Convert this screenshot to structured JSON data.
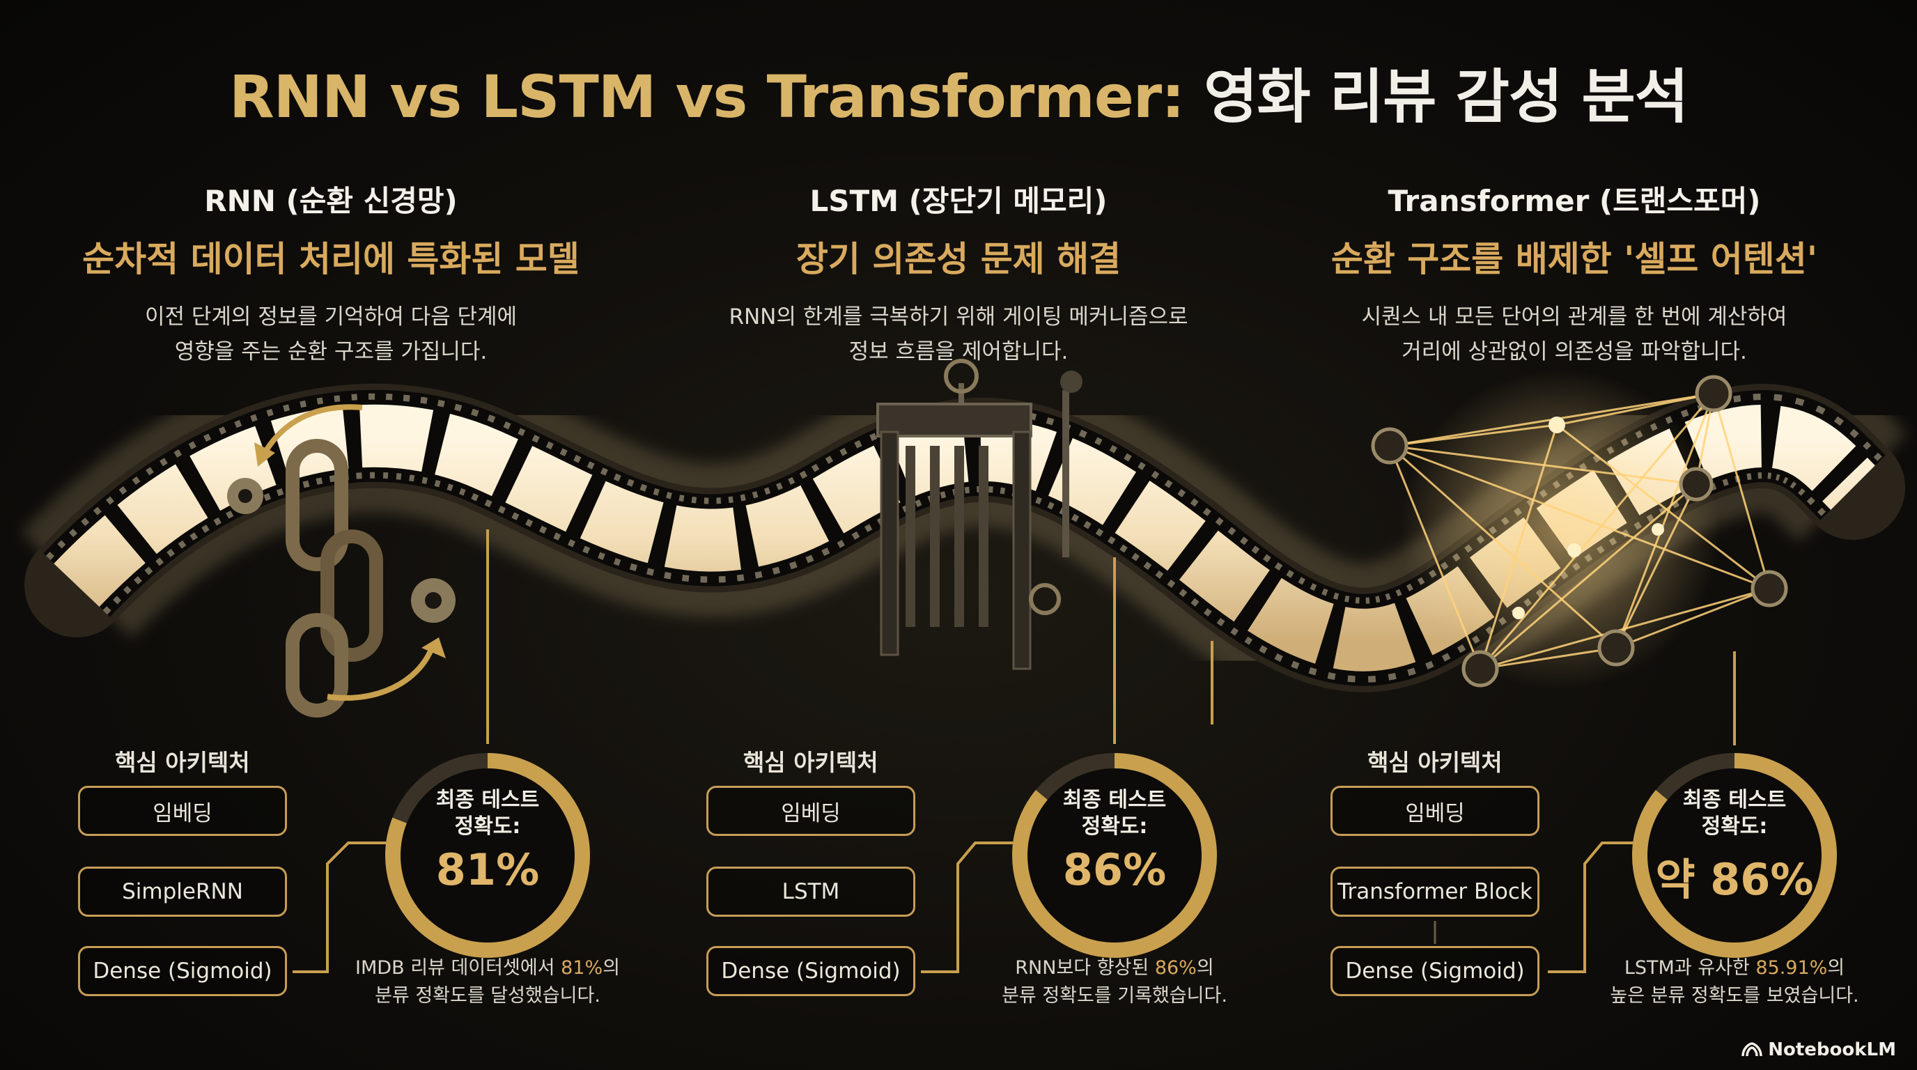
{
  "title": {
    "part1": "RNN vs LSTM vs Transformer:",
    "part2": "영화 리뷰 감성 분석"
  },
  "columns": [
    {
      "heading": "RNN (순환 신경망)",
      "subtitle": "순차적 데이터 처리에 특화된 모델",
      "desc_line1": "이전 단계의 정보를 기억하여 다음 단계에",
      "desc_line2": "영향을 주는 순환 구조를 가집니다.",
      "arch_title": "핵심 아키텍처",
      "layers": [
        "임베딩",
        "SimpleRNN",
        "Dense (Sigmoid)"
      ],
      "acc_label1": "최종 테스트",
      "acc_label2": "정확도:",
      "acc_value": "81%",
      "note_pre": "IMDB 리뷰 데이터셋에서 ",
      "note_hl": "81%",
      "note_post": "의",
      "note_line2": "분류 정확도를 달성했습니다."
    },
    {
      "heading": "LSTM (장단기 메모리)",
      "subtitle": "장기 의존성 문제 해결",
      "desc_line1": "RNN의 한계를 극복하기 위해 게이팅 메커니즘으로",
      "desc_line2": "정보 흐름을 제어합니다.",
      "arch_title": "핵심 아키텍처",
      "layers": [
        "임베딩",
        "LSTM",
        "Dense (Sigmoid)"
      ],
      "acc_label1": "최종 테스트",
      "acc_label2": "정확도:",
      "acc_value": "86%",
      "note_pre": "RNN보다 향상된 ",
      "note_hl": "86%",
      "note_post": "의",
      "note_line2": "분류 정확도를 기록했습니다."
    },
    {
      "heading": "Transformer (트랜스포머)",
      "subtitle": "순환 구조를 배제한 '셀프 어텐션'",
      "desc_line1": "시퀀스 내 모든 단어의 관계를 한 번에 계산하여",
      "desc_line2": "거리에 상관없이 의존성을 파악합니다.",
      "arch_title": "핵심 아키텍처",
      "layers": [
        "임베딩",
        "Transformer Block",
        "Dense (Sigmoid)"
      ],
      "acc_label1": "최종 테스트",
      "acc_label2": "정확도:",
      "acc_value": "약 86%",
      "note_pre": "LSTM과 유사한 ",
      "note_hl": "85.91%",
      "note_post": "의",
      "note_line2": "높은 분류 정확도를 보였습니다."
    }
  ],
  "accuracy_fraction": [
    0.81,
    0.86,
    0.86
  ],
  "brand": "NotebookLM",
  "colors": {
    "gold": "#d9b56a",
    "accent": "#d9aa5e",
    "ring": "#c9a04e",
    "box_border": "#c79d56"
  },
  "icons": [
    "chain-icon",
    "gear-icon",
    "gate-icon",
    "network-icon",
    "notebooklm-logo-icon"
  ]
}
